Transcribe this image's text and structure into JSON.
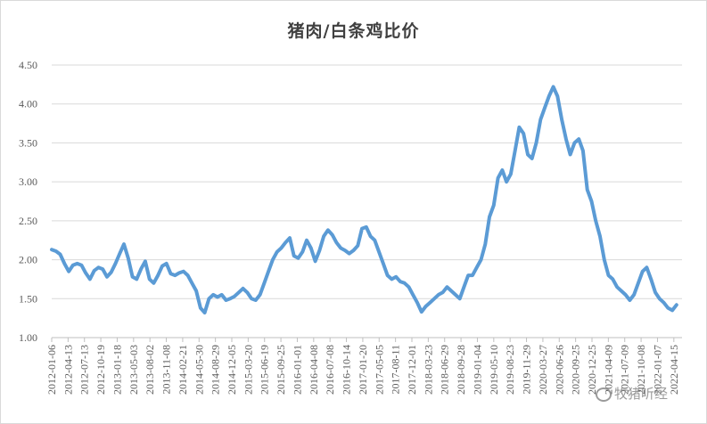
{
  "chart_data": {
    "type": "line",
    "title": "猪肉/白条鸡比价",
    "xlabel": "",
    "ylabel": "",
    "ylim": [
      1.0,
      4.5
    ],
    "yticks": [
      "1.00",
      "1.50",
      "2.00",
      "2.50",
      "3.00",
      "3.50",
      "4.00",
      "4.50"
    ],
    "xticks": [
      "2012-01-06",
      "2012-04-13",
      "2012-07-13",
      "2012-10-19",
      "2013-01-18",
      "2013-05-03",
      "2013-08-02",
      "2013-11-08",
      "2014-02-21",
      "2014-05-30",
      "2014-08-29",
      "2014-12-05",
      "2015-03-20",
      "2015-06-19",
      "2015-09-25",
      "2016-01-01",
      "2016-04-08",
      "2016-07-08",
      "2016-10-14",
      "2017-01-20",
      "2017-05-05",
      "2017-08-11",
      "2017-12-01",
      "2018-03-23",
      "2018-06-29",
      "2018-09-28",
      "2019-01-04",
      "2019-05-10",
      "2019-08-23",
      "2019-11-29",
      "2020-03-27",
      "2020-06-26",
      "2020-09-25",
      "2020-12-25",
      "2021-04-09",
      "2021-07-09",
      "2021-10-08",
      "2022-01-07",
      "2022-04-15"
    ],
    "grid": true,
    "line_color": "#5b9bd5",
    "series": [
      {
        "values": [
          2.13,
          2.11,
          2.07,
          1.95,
          1.85,
          1.93,
          1.95,
          1.93,
          1.83,
          1.75,
          1.86,
          1.9,
          1.88,
          1.78,
          1.84,
          1.95,
          2.08,
          2.2,
          2.02,
          1.78,
          1.75,
          1.88,
          1.98,
          1.75,
          1.7,
          1.8,
          1.92,
          1.95,
          1.82,
          1.8,
          1.83,
          1.85,
          1.8,
          1.7,
          1.6,
          1.38,
          1.32,
          1.5,
          1.55,
          1.52,
          1.55,
          1.48,
          1.5,
          1.53,
          1.58,
          1.63,
          1.58,
          1.5,
          1.48,
          1.55,
          1.7,
          1.85,
          2.0,
          2.1,
          2.15,
          2.22,
          2.28,
          2.05,
          2.02,
          2.1,
          2.25,
          2.15,
          1.98,
          2.12,
          2.3,
          2.38,
          2.32,
          2.22,
          2.15,
          2.12,
          2.08,
          2.12,
          2.18,
          2.4,
          2.42,
          2.3,
          2.25,
          2.1,
          1.95,
          1.8,
          1.75,
          1.78,
          1.72,
          1.7,
          1.65,
          1.55,
          1.45,
          1.33,
          1.4,
          1.45,
          1.5,
          1.55,
          1.58,
          1.65,
          1.6,
          1.55,
          1.5,
          1.65,
          1.8,
          1.8,
          1.9,
          2.0,
          2.2,
          2.55,
          2.7,
          3.05,
          3.15,
          3.0,
          3.1,
          3.4,
          3.7,
          3.62,
          3.35,
          3.3,
          3.5,
          3.8,
          3.95,
          4.1,
          4.22,
          4.1,
          3.8,
          3.55,
          3.35,
          3.5,
          3.55,
          3.4,
          2.9,
          2.75,
          2.5,
          2.3,
          2.0,
          1.8,
          1.75,
          1.65,
          1.6,
          1.55,
          1.48,
          1.55,
          1.7,
          1.85,
          1.9,
          1.75,
          1.58,
          1.5,
          1.45,
          1.38,
          1.35,
          1.42
        ]
      }
    ]
  },
  "watermark": "牧猪听经"
}
